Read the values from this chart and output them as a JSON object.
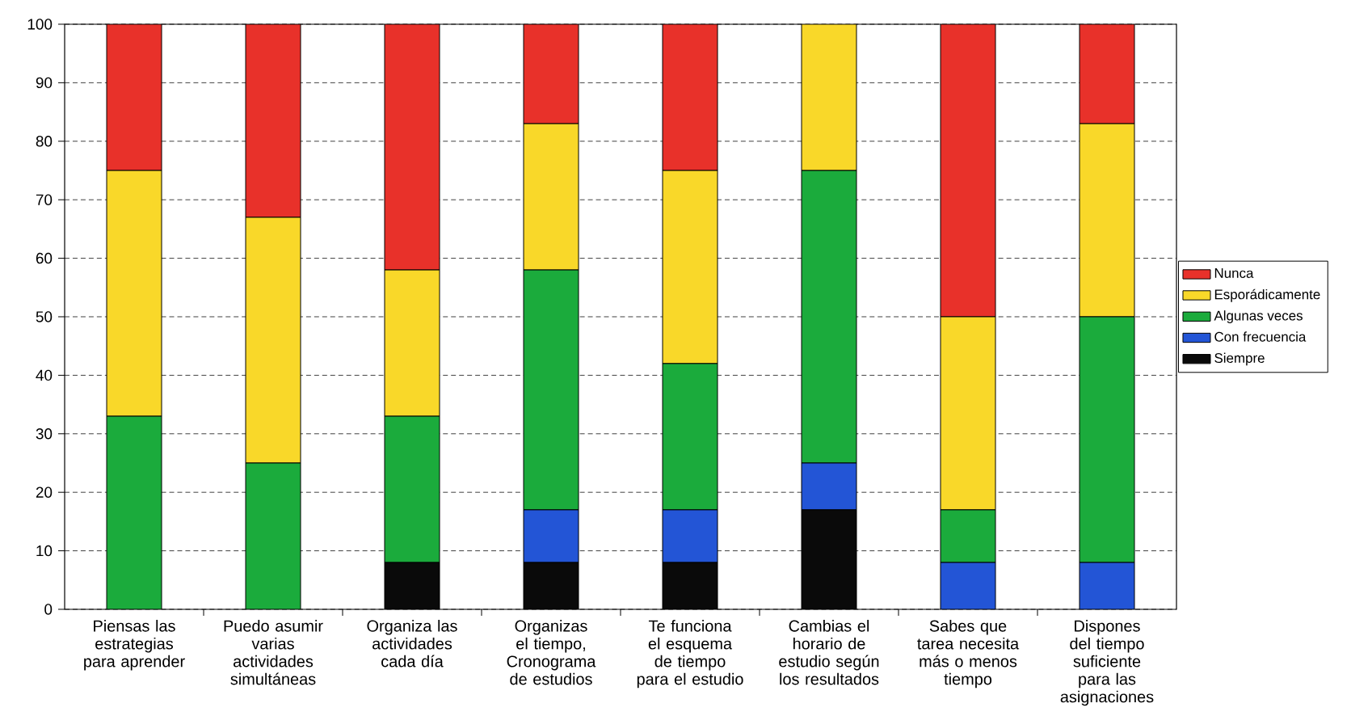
{
  "chart_data": {
    "type": "bar",
    "stacked": true,
    "categories": [
      "Piensas las estrategias para aprender",
      "Puedo asumir varias actividades simultáneas",
      "Organiza las actividades cada día",
      "Organizas el tiempo, Cronograma de estudios",
      "Te funciona el esquema de tiempo para el estudio",
      "Cambias el horario de estudio según los resultados",
      "Sabes que tarea necesita más o menos tiempo",
      "Dispones del tiempo suficiente para las asignaciones"
    ],
    "series": [
      {
        "name": "Siempre",
        "color": "#0a0a0a",
        "values": [
          0,
          0,
          8,
          8,
          8,
          17,
          0,
          0
        ]
      },
      {
        "name": "Con frecuencia",
        "color": "#2355d6",
        "values": [
          0,
          0,
          0,
          9,
          9,
          8,
          8,
          8
        ]
      },
      {
        "name": "Algunas veces",
        "color": "#1bab3c",
        "values": [
          33,
          25,
          25,
          41,
          25,
          50,
          9,
          42
        ]
      },
      {
        "name": "Esporádicamente",
        "color": "#f9d829",
        "values": [
          42,
          42,
          25,
          25,
          33,
          25,
          33,
          33
        ]
      },
      {
        "name": "Nunca",
        "color": "#e8312a",
        "values": [
          25,
          33,
          42,
          17,
          25,
          0,
          50,
          17
        ]
      }
    ],
    "ylim": [
      0,
      100
    ],
    "yticks": [
      0,
      10,
      20,
      30,
      40,
      50,
      60,
      70,
      80,
      90,
      100
    ],
    "grid": "y",
    "legend": "right"
  }
}
